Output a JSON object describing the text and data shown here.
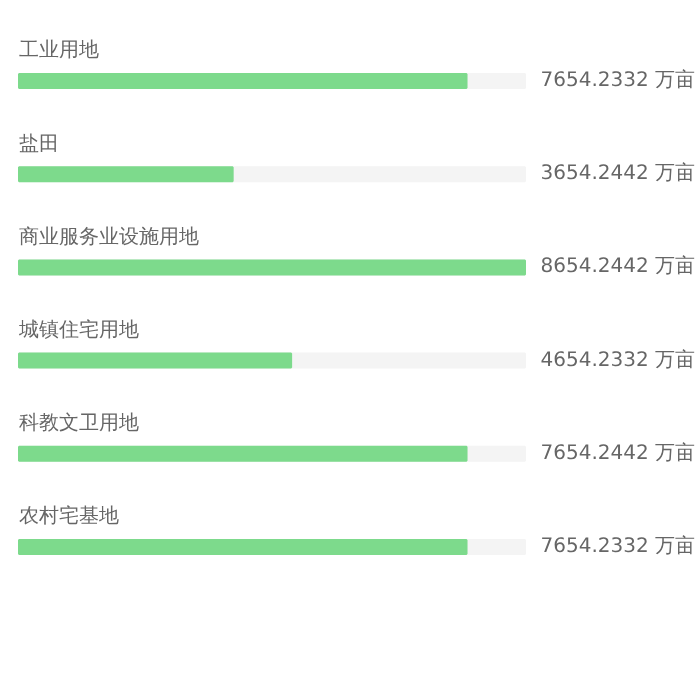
{
  "chart_data": {
    "type": "bar",
    "orientation": "horizontal",
    "categories": [
      "工业用地",
      "盐田",
      "商业服务业设施用地",
      "城镇住宅用地",
      "科教文卫用地",
      "农村宅基地"
    ],
    "values": [
      7654.2332,
      3654.2442,
      8654.2442,
      4654.2332,
      7654.2442,
      7654.2332
    ],
    "value_labels": [
      "7654.2332 万亩",
      "3654.2442 万亩",
      "8654.2442 万亩",
      "4654.2332 万亩",
      "7654.2442 万亩",
      "7654.2332 万亩"
    ],
    "color": "#7dda8c",
    "xlim": [
      0,
      8654.2442
    ],
    "tick_labels": false,
    "grid": false
  }
}
